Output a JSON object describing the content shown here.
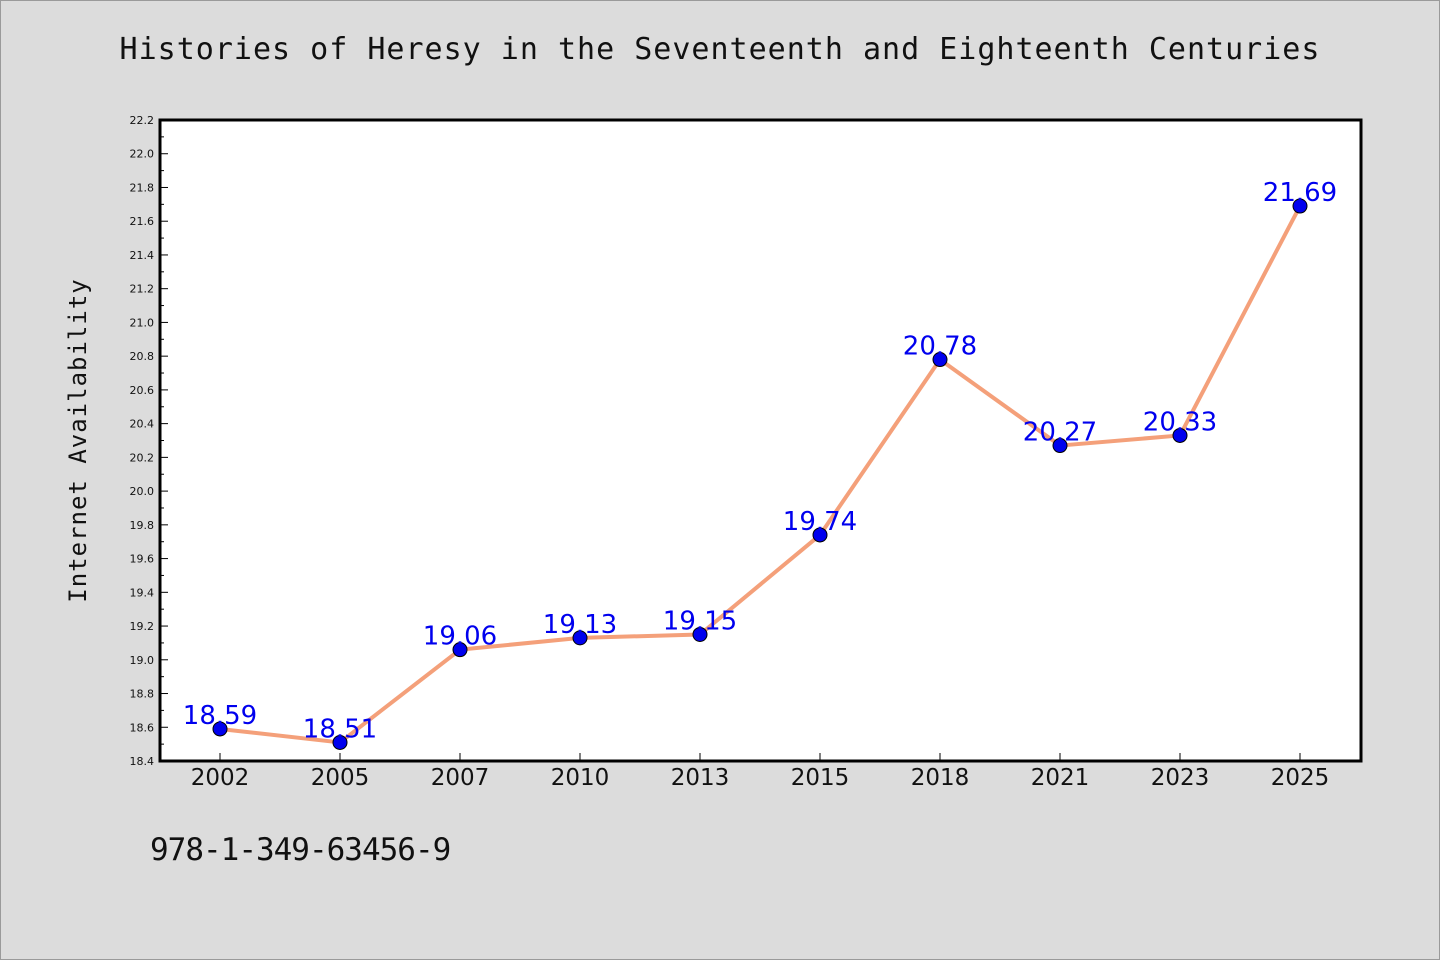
{
  "isbn": "978-1-349-63456-9",
  "chart_data": {
    "type": "line",
    "title": "Histories of Heresy in the Seventeenth and Eighteenth Centuries",
    "xlabel": "",
    "ylabel": "Internet Availability",
    "categories": [
      "2002",
      "2005",
      "2007",
      "2010",
      "2013",
      "2015",
      "2018",
      "2021",
      "2023",
      "2025"
    ],
    "values": [
      18.59,
      18.51,
      19.06,
      19.13,
      19.15,
      19.74,
      20.78,
      20.27,
      20.33,
      21.69
    ],
    "data_labels": [
      "18.59",
      "18.51",
      "19.06",
      "19.13",
      "19.15",
      "19.74",
      "20.78",
      "20.27",
      "20.33",
      "21.69"
    ],
    "ylim": [
      18.4,
      22.2
    ],
    "yticks": [
      "18.4",
      "18.6",
      "18.8",
      "19.0",
      "19.2",
      "19.4",
      "19.6",
      "19.8",
      "20.0",
      "20.2",
      "20.4",
      "20.6",
      "20.8",
      "21.0",
      "21.2",
      "21.4",
      "21.6",
      "21.8",
      "22.0",
      "22.2"
    ],
    "grid": false,
    "line_color": "#f4a07a",
    "marker_color": "#0000ee",
    "label_color": "#0000ee",
    "plot_background": "#ffffff",
    "page_background": "#dcdcdc"
  }
}
